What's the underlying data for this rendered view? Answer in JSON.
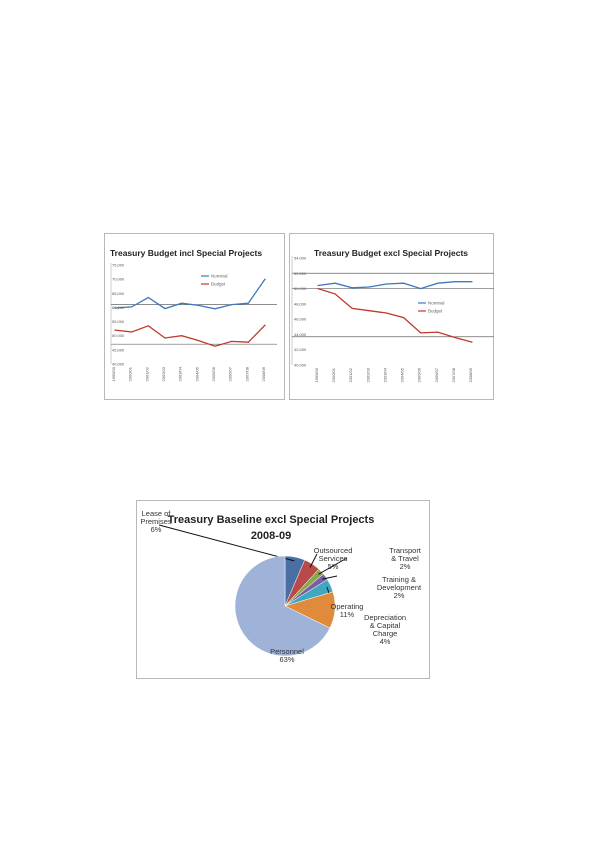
{
  "chart_data": [
    {
      "type": "line",
      "title": "Treasury Budget incl Special Projects",
      "categories": [
        "1999/00",
        "2000/01",
        "2001/02",
        "2002/03",
        "2003/04",
        "2004/05",
        "2005/06",
        "2006/07",
        "2007/08",
        "2008/09"
      ],
      "yticks": [
        "40,000",
        "45,000",
        "50,000",
        "55,000",
        "60,000",
        "65,000",
        "70,000",
        "75,000"
      ],
      "ylim": [
        40000,
        75000
      ],
      "series": [
        {
          "name": "Nominal",
          "color": "#3e78c0",
          "values": [
            59800,
            60200,
            63500,
            59600,
            61500,
            60700,
            59500,
            61000,
            61500,
            70000
          ]
        },
        {
          "name": "Budget",
          "color": "#c0392b",
          "values": [
            52000,
            51300,
            53500,
            49200,
            50000,
            48300,
            46300,
            48000,
            47700,
            53700
          ]
        }
      ],
      "hlines": [
        61000,
        47000
      ],
      "legend": "center-right",
      "grid": false
    },
    {
      "type": "line",
      "title": "Treasury Budget excl Special Projects",
      "categories": [
        "1999/00",
        "2000/01",
        "2001/02",
        "2002/03",
        "2003/04",
        "2004/05",
        "2005/06",
        "2006/07",
        "2007/08",
        "2008/09"
      ],
      "yticks": [
        "40,000",
        "42,000",
        "44,000",
        "46,000",
        "48,000",
        "50,000",
        "52,000",
        "54,000"
      ],
      "ylim": [
        40000,
        54000
      ],
      "series": [
        {
          "name": "Nominal",
          "color": "#3e78c0",
          "values": [
            50400,
            50700,
            50100,
            50200,
            50600,
            50700,
            50000,
            50700,
            50900,
            50900
          ]
        },
        {
          "name": "Budget",
          "color": "#c0392b",
          "values": [
            50000,
            49300,
            47400,
            47100,
            46800,
            46200,
            44200,
            44300,
            43600,
            43000
          ]
        }
      ],
      "hlines": [
        52000,
        50000,
        43700
      ],
      "legend": "center-right",
      "grid": false
    },
    {
      "type": "pie",
      "title": "Treasury Baseline excl Special Projects 2008-09",
      "slices": [
        {
          "label": "Lease of Premises",
          "pct_text": "6%",
          "value": 6,
          "color": "#4a6fa5"
        },
        {
          "label": "Outsourced Services",
          "pct_text": "5%",
          "value": 5,
          "color": "#b94a48"
        },
        {
          "label": "Transport & Travel",
          "pct_text": "2%",
          "value": 2,
          "color": "#8aa84b"
        },
        {
          "label": "Training & Development",
          "pct_text": "2%",
          "value": 2,
          "color": "#7a5ea8"
        },
        {
          "label": "Depreciation & Capital Charge",
          "pct_text": "4%",
          "value": 4,
          "color": "#3fa8c0"
        },
        {
          "label": "Operating",
          "pct_text": "11%",
          "value": 11,
          "color": "#e08a3c"
        },
        {
          "label": "Personnel",
          "pct_text": "63%",
          "value": 63,
          "color": "#9fb3d8"
        }
      ]
    }
  ],
  "ui": {
    "chart1_legend": [
      "Nominal",
      "Budget"
    ],
    "chart2_legend": [
      "Nominal",
      "Budget"
    ]
  }
}
